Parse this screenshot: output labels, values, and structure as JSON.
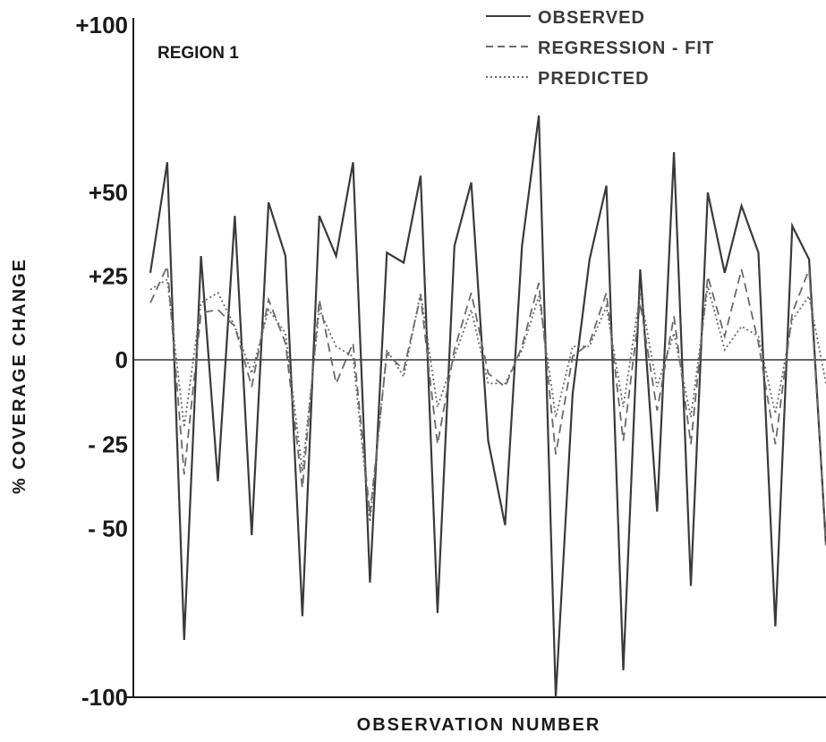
{
  "chart_data": {
    "type": "line",
    "title": "",
    "panel_label": "REGION  1",
    "xlabel": "OBSERVATION  NUMBER",
    "ylabel": "%  COVERAGE  CHANGE",
    "ylim": [
      -100,
      100
    ],
    "yticks": [
      {
        "value": 100,
        "label": "+100"
      },
      {
        "value": 50,
        "label": "+50"
      },
      {
        "value": 25,
        "label": "+25"
      },
      {
        "value": 0,
        "label": "0"
      },
      {
        "value": -25,
        "label": "- 25"
      },
      {
        "value": -50,
        "label": "- 50"
      },
      {
        "value": -100,
        "label": "-100"
      }
    ],
    "xlim": [
      1,
      46
    ],
    "grid": false,
    "legend_position": "top-right",
    "series": [
      {
        "name": "OBSERVED",
        "style": "solid",
        "color": "#3a3a3a",
        "values": [
          26,
          59,
          -83,
          31,
          -36,
          43,
          -52,
          47,
          31,
          -76,
          43,
          31,
          59,
          -66,
          32,
          29,
          55,
          -75,
          34,
          53,
          -24,
          -49,
          34,
          73,
          -100,
          -10,
          30,
          52,
          -92,
          27,
          -45,
          62,
          -67,
          50,
          26,
          46,
          32,
          -79,
          40,
          30,
          -55
        ]
      },
      {
        "name": "REGRESSION - FIT",
        "style": "dashed",
        "color": "#6a6a6a",
        "values": [
          17,
          28,
          -34,
          14,
          15,
          10,
          -8,
          18,
          5,
          -38,
          18,
          -7,
          5,
          -46,
          2,
          -3,
          19,
          -25,
          3,
          20,
          -4,
          -8,
          4,
          23,
          -28,
          1,
          5,
          20,
          -24,
          17,
          -15,
          13,
          -25,
          25,
          7,
          27,
          5,
          -25,
          14,
          27,
          -55
        ]
      },
      {
        "name": "PREDICTED",
        "style": "dotted",
        "color": "#6a6a6a",
        "values": [
          21,
          24,
          -20,
          17,
          20,
          10,
          -4,
          15,
          8,
          -33,
          15,
          4,
          1,
          -48,
          3,
          -5,
          20,
          -14,
          1,
          15,
          -7,
          -7,
          3,
          19,
          -17,
          4,
          4,
          16,
          -14,
          20,
          -8,
          8,
          -17,
          22,
          3,
          10,
          7,
          -16,
          12,
          19,
          -7
        ]
      }
    ]
  }
}
